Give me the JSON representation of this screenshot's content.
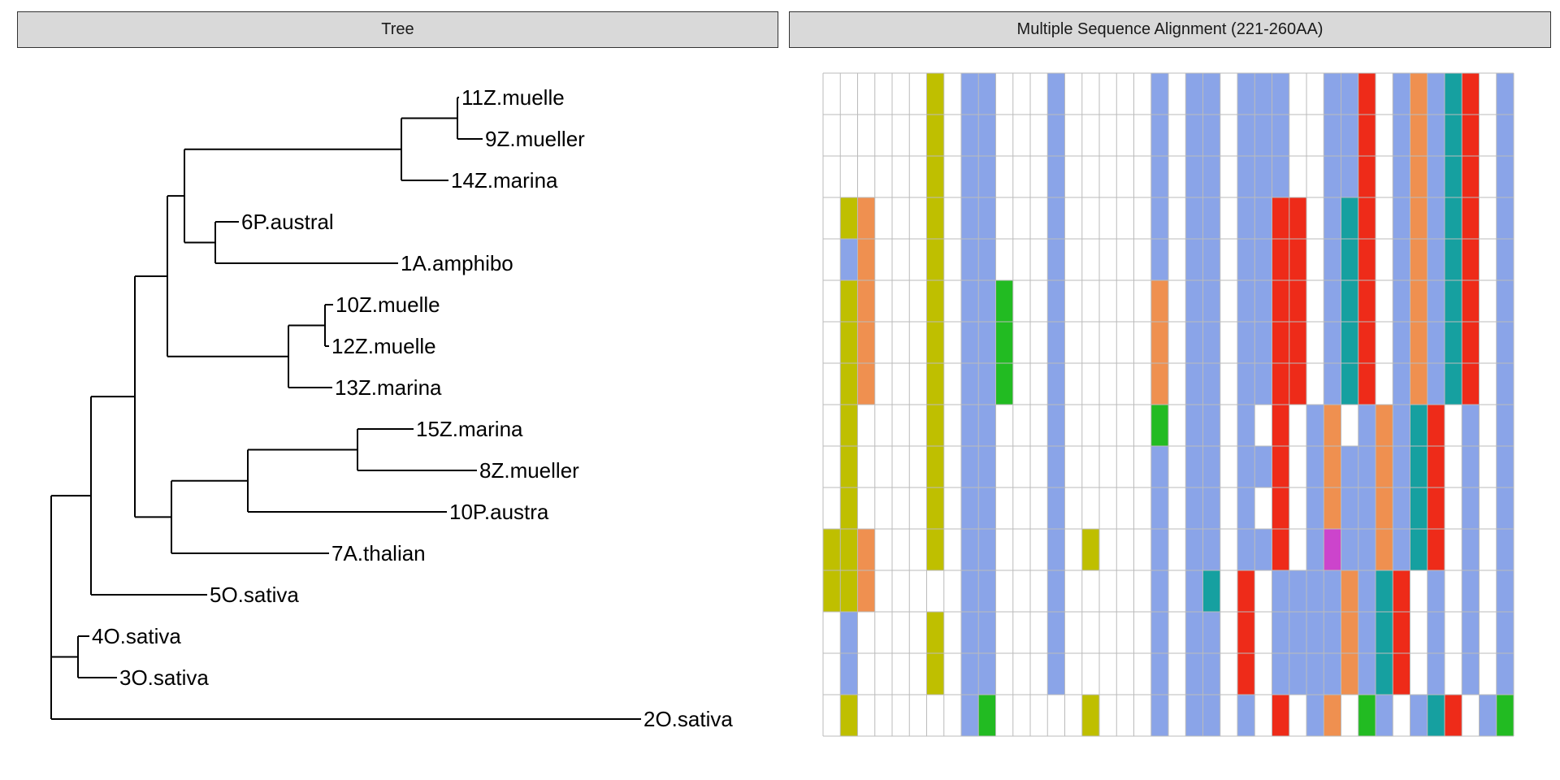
{
  "panels": {
    "tree_title": "Tree",
    "msa_title": "Multiple Sequence Alignment (221-260AA)"
  },
  "colors": {
    "hydrophobic": "#8aa4e8",
    "acidic": "#ee2b19",
    "polar": "#22bb22",
    "glycine": "#ef9050",
    "proline": "#bfbf00",
    "aromatic": "#16a0a0",
    "cysteine": "#cc44cc",
    "gap": "#ffffff",
    "grid": "#bbbbbb",
    "branch": "#000000"
  },
  "tree": {
    "leaves": [
      "11Z.muelle",
      "9Z.mueller",
      "14Z.marina",
      "6P.austral",
      "1A.amphibo",
      "10Z.muelle",
      "12Z.muelle",
      "13Z.marina",
      "15Z.marina",
      "8Z.mueller",
      "10P.austra",
      "7A.thalian",
      "5O.sativa",
      "4O.sativa",
      "3O.sativa",
      "2O.sativa"
    ]
  },
  "alignment": {
    "columns": 40,
    "column_types": [
      "W",
      "W",
      "W",
      "W",
      "W",
      "W",
      "Y",
      "W",
      "B",
      "B",
      "W",
      "W",
      "W",
      "B",
      "W",
      "W",
      "W",
      "W",
      "W",
      "B",
      "W",
      "B",
      "B",
      "W",
      "B",
      "B",
      "B",
      "W",
      "W",
      "B",
      "B",
      "R",
      "W",
      "B",
      "O",
      "B",
      "B",
      "B",
      "R",
      "W"
    ],
    "rows": [
      {
        "label": "11Z.muelle",
        "cells": "WWWWWWYWBBWWWBWWWWWBWBBWBBBWWBBRWBOBTRWB"
      },
      {
        "label": "9Z.mueller",
        "cells": "WWWWWWYWBBWWWBWWWWWBWBBWBBBWWBBRWBOBTRWB"
      },
      {
        "label": "14Z.marina",
        "cells": "WWWWWWYWBBWWWBWWWWWBWBBWBBBWWBBRWBOBTRWB"
      },
      {
        "label": "6P.austral",
        "cells": "WYOWWWYWBBWWWBWWWWWBWBBWBBRRWBTRWBOBTRWB"
      },
      {
        "label": "1A.amphibo",
        "cells": "WBOWWWYWBBWWWBWWWWWBWBBWBBRRWBTRWBOBTRWB"
      },
      {
        "label": "10Z.muelle",
        "cells": "WYOWWWYWBBGWWBWWWWWOWBBWBBRRWBTRWBOBTRWB"
      },
      {
        "label": "12Z.muelle",
        "cells": "WYOWWWYWBBGWWBWWWWWOWBBWBBRRWBTRWBOBTRWB"
      },
      {
        "label": "13Z.marina",
        "cells": "WYOWWWYWBBGWWBWWWWWOWBBWBBRRWBTRWBOBTRWB"
      },
      {
        "label": "15Z.marina",
        "cells": "WYWWWWYWBBWWWBWWWWWGWBBWBWRWBOWBOBTRWBWB"
      },
      {
        "label": "8Z.mueller",
        "cells": "WYWWWWYWBBWWWBWWWWWBWBBWBBRWBOBBOBTRWBWB"
      },
      {
        "label": "10P.austra",
        "cells": "WYWWWWYWBBWWWBWWWWWBWBBWBWRWBOBBOBTRWBWB"
      },
      {
        "label": "7A.thalian",
        "cells": "YYOWWWYWBBWWWBWYWWWBWBBWBBRWBCBBOBTRWBWB"
      },
      {
        "label": "5O.sativa",
        "cells": "YYOWWWWWBBWWWBWWWWWBWBTWRWBBBBOBTRWBWBWB"
      },
      {
        "label": "4O.sativa",
        "cells": "WBWWWWYWBBWWWBWWWWWBWBBWRWBBBBOBTRWBWBWB"
      },
      {
        "label": "3O.sativa",
        "cells": "WBWWWWYWBBWWWBWWWWWBWBBWRWBBBBOBTRWBWBWB"
      },
      {
        "label": "2O.sativa",
        "cells": "WYWWWWWWBGWWWWWYWWWBWBBWBWRWBOWGBWBTRWBG"
      }
    ]
  }
}
